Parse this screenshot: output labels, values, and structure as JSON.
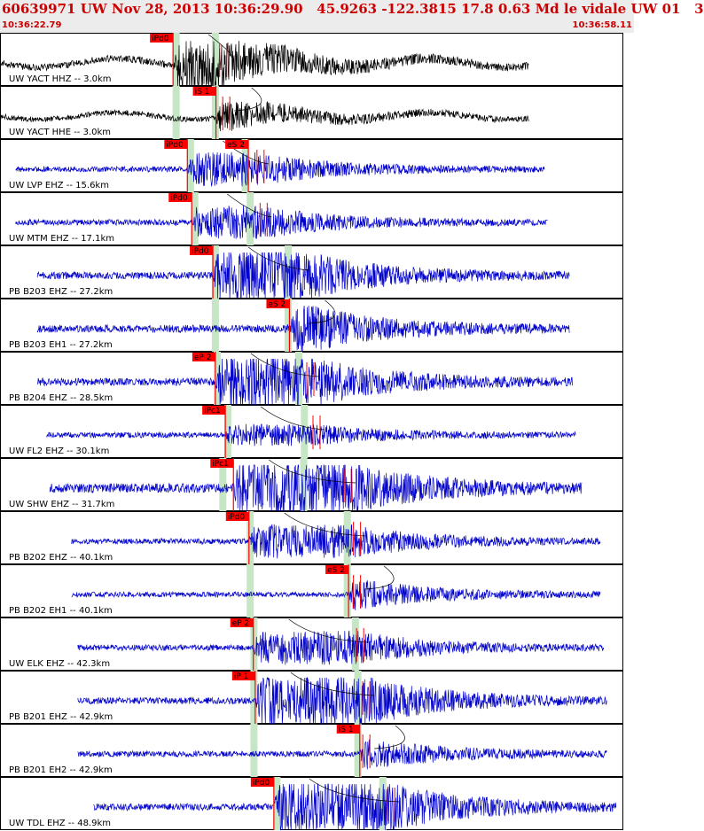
{
  "header": {
    "title": "60639971 UW Nov 28, 2013 10:36:29.90   45.9263 -122.3815 17.8 0.63 Md le vidale UW 01   3",
    "start_time": "10:36:22.79",
    "end_time": "10:36:58.11"
  },
  "colors": {
    "header_bg": "#ececec",
    "header_text": "#cc0000",
    "trace_black": "#000000",
    "trace_blue": "#0000cc",
    "pick": "#ff0000",
    "pick_label_bg": "#ff0000",
    "window": "#c6e6c6",
    "panel_border": "#000000"
  },
  "chart_data": {
    "type": "seismogram",
    "x_axis": {
      "start": "10:36:22.79",
      "end": "10:36:58.11",
      "unit": "s"
    },
    "traces": [
      {
        "label": "UW YACT HHZ -- 3.0km",
        "color": "black",
        "trace_start": 0.0,
        "trace_end": 0.85,
        "amp": 0.35,
        "picks": [
          {
            "label": "iPd0",
            "pos": 0.278
          }
        ],
        "windows": [
          0.283,
          0.346
        ],
        "pulse": 0.35,
        "coda": "heavy"
      },
      {
        "label": "UW YACT HHE -- 3.0km",
        "color": "black",
        "trace_start": 0.0,
        "trace_end": 0.85,
        "amp": 0.15,
        "picks": [
          {
            "label": "iS 1",
            "pos": 0.347
          }
        ],
        "windows": [
          0.283,
          0.346
        ],
        "pulse": 0.355,
        "coda": "medium"
      },
      {
        "label": "UW LVP EHZ -- 15.6km",
        "color": "blue",
        "trace_start": 0.025,
        "trace_end": 0.875,
        "amp": 0.15,
        "picks": [
          {
            "label": "iPd0",
            "pos": 0.301
          },
          {
            "label": "eS 2",
            "pos": 0.399
          }
        ],
        "windows": [
          0.306,
          0.394
        ],
        "pulse": 0.41,
        "coda": "medium"
      },
      {
        "label": "UW MTM EHZ -- 17.1km",
        "color": "blue",
        "trace_start": 0.025,
        "trace_end": 0.88,
        "amp": 0.2,
        "picks": [
          {
            "label": "iPd0",
            "pos": 0.308
          }
        ],
        "windows": [
          0.313,
          0.402
        ],
        "pulse": 0.415,
        "coda": "medium"
      },
      {
        "label": "PB B203 EHZ -- 27.2km",
        "color": "blue",
        "trace_start": 0.06,
        "trace_end": 0.915,
        "amp": 0.4,
        "picks": [
          {
            "label": "iPd0",
            "pos": 0.342
          }
        ],
        "windows": [
          0.346,
          0.463
        ],
        "pulse": 0.475,
        "coda": "heavy"
      },
      {
        "label": "PB B203 EH1 -- 27.2km",
        "color": "blue",
        "trace_start": 0.06,
        "trace_end": 0.915,
        "amp": 0.45,
        "picks": [
          {
            "label": "eS 2",
            "pos": 0.465
          }
        ],
        "windows": [
          0.346,
          0.463
        ],
        "pulse": 0.475,
        "coda": "heavy"
      },
      {
        "label": "PB B204 EHZ -- 28.5km",
        "color": "blue",
        "trace_start": 0.06,
        "trace_end": 0.92,
        "amp": 0.45,
        "picks": [
          {
            "label": "eP 2",
            "pos": 0.346
          }
        ],
        "windows": [
          0.349,
          0.48
        ],
        "pulse": 0.49,
        "coda": "heavy"
      },
      {
        "label": "UW FL2 EHZ -- 30.1km",
        "color": "blue",
        "trace_start": 0.075,
        "trace_end": 0.925,
        "amp": 0.15,
        "picks": [
          {
            "label": "iPc1",
            "pos": 0.362
          }
        ],
        "windows": [
          0.366,
          0.489
        ],
        "pulse": 0.5,
        "coda": "light"
      },
      {
        "label": "UW SHW EHZ -- 31.7km",
        "color": "blue",
        "trace_start": 0.08,
        "trace_end": 0.935,
        "amp": 0.7,
        "picks": [
          {
            "label": "iPc1",
            "pos": 0.375
          }
        ],
        "windows": [
          0.358,
          0.488
        ],
        "pulse": 0.55,
        "coda": "heavy"
      },
      {
        "label": "PB B202 EHZ -- 40.1km",
        "color": "blue",
        "trace_start": 0.115,
        "trace_end": 0.965,
        "amp": 0.15,
        "picks": [
          {
            "label": "iPd0",
            "pos": 0.4
          }
        ],
        "windows": [
          0.402,
          0.558
        ],
        "pulse": 0.565,
        "coda": "medium"
      },
      {
        "label": "PB B202 EH1 -- 40.1km",
        "color": "blue",
        "trace_start": 0.115,
        "trace_end": 0.965,
        "amp": 0.1,
        "picks": [
          {
            "label": "eS 2",
            "pos": 0.56
          }
        ],
        "windows": [
          0.402,
          0.558
        ],
        "pulse": 0.565,
        "coda": "medium"
      },
      {
        "label": "UW ELK EHZ -- 42.3km",
        "color": "blue",
        "trace_start": 0.125,
        "trace_end": 0.97,
        "amp": 0.2,
        "picks": [
          {
            "label": "eP 2",
            "pos": 0.407
          }
        ],
        "windows": [
          0.408,
          0.571
        ],
        "pulse": 0.57,
        "coda": "medium"
      },
      {
        "label": "PB B201 EHZ -- 42.9km",
        "color": "blue",
        "trace_start": 0.125,
        "trace_end": 0.975,
        "amp": 0.3,
        "picks": [
          {
            "label": "iP 1",
            "pos": 0.41
          }
        ],
        "windows": [
          0.408,
          0.575
        ],
        "pulse": 0.58,
        "coda": "heavy"
      },
      {
        "label": "PB B201 EH2 -- 42.9km",
        "color": "blue",
        "trace_start": 0.125,
        "trace_end": 0.975,
        "amp": 0.2,
        "picks": [
          {
            "label": "iS 1",
            "pos": 0.578
          }
        ],
        "windows": [
          0.408,
          0.575
        ],
        "pulse": 0.58,
        "coda": "medium"
      },
      {
        "label": "UW TDL EHZ -- 48.9km",
        "color": "blue",
        "trace_start": 0.15,
        "trace_end": 0.99,
        "amp": 0.35,
        "picks": [
          {
            "label": "iPd0",
            "pos": 0.44
          }
        ],
        "windows": [
          0.445,
          0.615
        ],
        "pulse": 0.62,
        "coda": "heavy"
      }
    ]
  }
}
